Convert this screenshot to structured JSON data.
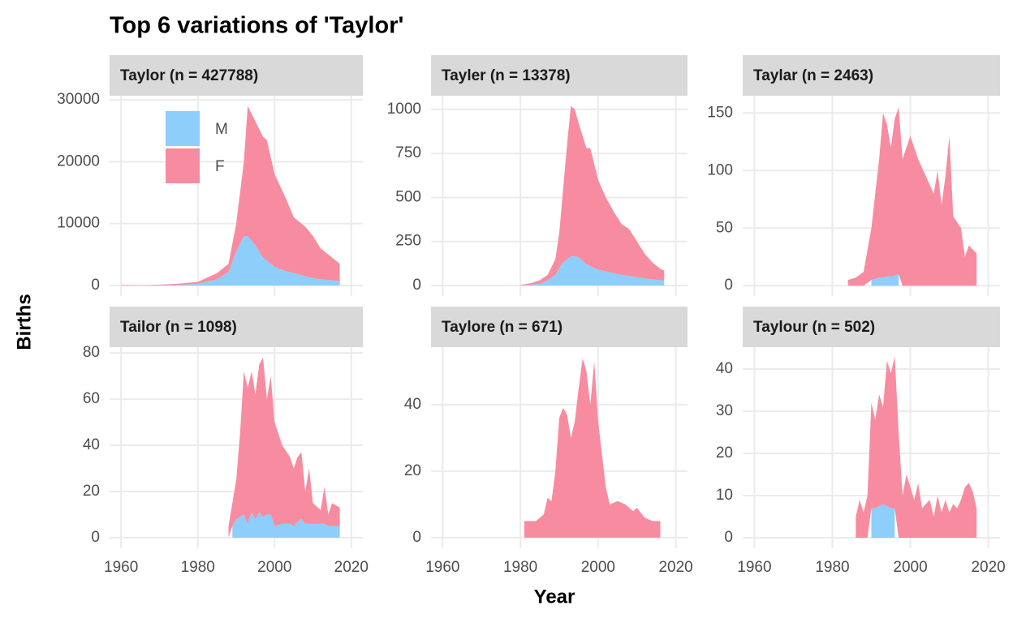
{
  "title": "Top 6 variations of 'Taylor'",
  "x_label": "Year",
  "y_label": "Births",
  "chart_data": [
    {
      "type": "area",
      "stacked": true,
      "grid": true,
      "legend": "top-left",
      "subtitle": "Taylor (n = 427788)",
      "x": [
        1960,
        1965,
        1970,
        1975,
        1980,
        1985,
        1988,
        1990,
        1992,
        1993,
        1995,
        1997,
        1998,
        2000,
        2003,
        2005,
        2008,
        2010,
        2012,
        2014,
        2017
      ],
      "series": [
        {
          "name": "M",
          "color": "#8ecefa",
          "values": [
            20,
            10,
            50,
            100,
            300,
            1000,
            2200,
            5500,
            8000,
            8000,
            6500,
            4500,
            4000,
            3000,
            2300,
            2000,
            1500,
            1200,
            1000,
            900,
            700
          ]
        },
        {
          "name": "F",
          "color": "#f78ca0",
          "values": [
            80,
            40,
            100,
            200,
            300,
            1000,
            1300,
            4500,
            12000,
            21000,
            20000,
            19500,
            19500,
            15000,
            11700,
            9000,
            8000,
            6800,
            5000,
            4100,
            2800
          ]
        }
      ],
      "xlim": [
        1957,
        2023
      ],
      "xticks": [
        1960,
        1980,
        2000,
        2020
      ],
      "ylim": [
        -1700,
        30650
      ],
      "yticks": [
        0,
        10000,
        20000,
        30000
      ]
    },
    {
      "type": "area",
      "stacked": true,
      "grid": true,
      "subtitle": "Tayler (n = 13378)",
      "x": [
        1980,
        1983,
        1985,
        1987,
        1989,
        1990,
        1991,
        1992,
        1993,
        1994,
        1995,
        1997,
        1998,
        2000,
        2002,
        2004,
        2006,
        2008,
        2010,
        2012,
        2014,
        2016,
        2017
      ],
      "series": [
        {
          "color": "#8ecefa",
          "values": [
            1,
            5,
            10,
            30,
            60,
            100,
            130,
            150,
            165,
            165,
            160,
            120,
            110,
            90,
            80,
            70,
            60,
            55,
            45,
            40,
            35,
            30,
            30
          ]
        },
        {
          "color": "#f78ca0",
          "values": [
            2,
            10,
            20,
            30,
            90,
            200,
            420,
            650,
            855,
            835,
            760,
            660,
            670,
            510,
            420,
            350,
            290,
            265,
            205,
            140,
            95,
            65,
            55
          ]
        }
      ],
      "xlim": [
        1957,
        2023
      ],
      "xticks": [
        1960,
        1980,
        2000,
        2020
      ],
      "ylim": [
        -60,
        1078
      ],
      "yticks": [
        0,
        250,
        500,
        750,
        1000
      ]
    },
    {
      "type": "area",
      "stacked": true,
      "grid": true,
      "subtitle": "Taylar (n = 2463)",
      "x": [
        1984,
        1986,
        1988,
        1990,
        1992,
        1993,
        1994,
        1995,
        1996,
        1997,
        1998,
        2000,
        2002,
        2004,
        2006,
        2007,
        2008,
        2009,
        2010,
        2011,
        2012,
        2013,
        2014,
        2015,
        2017
      ],
      "series": [
        {
          "color": "#8ecefa",
          "values": [
            null,
            null,
            null,
            5,
            7,
            7,
            8,
            8,
            9,
            10,
            null,
            null,
            null,
            null,
            null,
            null,
            null,
            null,
            null,
            null,
            null,
            null,
            null,
            null,
            null
          ]
        },
        {
          "color": "#f78ca0",
          "values": [
            5,
            7,
            12,
            45,
            103,
            143,
            132,
            112,
            136,
            145,
            110,
            130,
            110,
            95,
            80,
            100,
            70,
            95,
            130,
            60,
            55,
            50,
            25,
            35,
            28
          ]
        }
      ],
      "xlim": [
        1957,
        2023
      ],
      "xticks": [
        1960,
        1980,
        2000,
        2020
      ],
      "ylim": [
        -9,
        165
      ],
      "yticks": [
        0,
        50,
        100,
        150
      ]
    },
    {
      "type": "area",
      "stacked": true,
      "grid": true,
      "subtitle": "Tailor (n = 1098)",
      "x": [
        1988,
        1989,
        1990,
        1991,
        1992,
        1993,
        1994,
        1995,
        1996,
        1997,
        1998,
        1999,
        2000,
        2002,
        2004,
        2005,
        2006,
        2007,
        2008,
        2009,
        2010,
        2012,
        2013,
        2014,
        2015,
        2017
      ],
      "series": [
        {
          "color": "#8ecefa",
          "values": [
            null,
            5,
            8,
            9,
            10,
            6,
            11,
            8,
            11,
            9,
            10,
            10,
            5,
            6,
            6,
            5,
            7,
            8,
            6,
            6,
            6,
            6,
            6,
            5,
            5,
            5
          ]
        },
        {
          "color": "#f78ca0",
          "values": [
            5,
            10,
            17,
            36,
            62,
            59,
            61,
            54,
            64,
            69,
            50,
            60,
            45,
            34,
            29,
            25,
            28,
            29,
            14,
            24,
            9,
            6,
            16,
            5,
            10,
            8
          ]
        }
      ],
      "xlim": [
        1957,
        2023
      ],
      "xticks": [
        1960,
        1980,
        2000,
        2020
      ],
      "ylim": [
        -4.6,
        82.5
      ],
      "yticks": [
        0,
        20,
        40,
        60,
        80
      ]
    },
    {
      "type": "area",
      "stacked": true,
      "grid": true,
      "subtitle": "Taylore (n = 671)",
      "x": [
        1981,
        1984,
        1986,
        1987,
        1988,
        1989,
        1990,
        1991,
        1992,
        1993,
        1994,
        1995,
        1996,
        1997,
        1998,
        1999,
        2000,
        2002,
        2003,
        2005,
        2007,
        2009,
        2010,
        2012,
        2014,
        2016
      ],
      "series": [
        {
          "color": "#f78ca0",
          "values": [
            5,
            5,
            7,
            12,
            11,
            20,
            36,
            39,
            37,
            30,
            35,
            45,
            54,
            50,
            40,
            53,
            35,
            15,
            10,
            11,
            10,
            8,
            9,
            6,
            5,
            5
          ]
        }
      ],
      "xlim": [
        1957,
        2023
      ],
      "xticks": [
        1960,
        1980,
        2000,
        2020
      ],
      "ylim": [
        -3.2,
        57.3
      ],
      "yticks": [
        0,
        20,
        40
      ]
    },
    {
      "type": "area",
      "stacked": true,
      "grid": true,
      "subtitle": "Taylour (n = 502)",
      "x": [
        1986,
        1987,
        1988,
        1989,
        1990,
        1991,
        1992,
        1993,
        1994,
        1995,
        1996,
        1997,
        1998,
        1999,
        2000,
        2001,
        2002,
        2003,
        2005,
        2006,
        2007,
        2008,
        2009,
        2010,
        2011,
        2012,
        2013,
        2014,
        2015,
        2016,
        2017
      ],
      "series": [
        {
          "color": "#8ecefa",
          "values": [
            null,
            null,
            null,
            null,
            7,
            7,
            7.5,
            8,
            7.5,
            7,
            7,
            null,
            null,
            null,
            null,
            null,
            null,
            null,
            null,
            null,
            null,
            null,
            null,
            null,
            null,
            null,
            null,
            null,
            null,
            null,
            null
          ]
        },
        {
          "color": "#f78ca0",
          "values": [
            5,
            9,
            6,
            10,
            25,
            21,
            26.5,
            23,
            34.5,
            32,
            36,
            25,
            10,
            15,
            12,
            9,
            13,
            7,
            9,
            5,
            10,
            6,
            9,
            6,
            8,
            7,
            9,
            12,
            13,
            11,
            7
          ]
        }
      ],
      "xlim": [
        1957,
        2023
      ],
      "xticks": [
        1960,
        1980,
        2000,
        2020
      ],
      "ylim": [
        -2.5,
        45.2
      ],
      "yticks": [
        0,
        10,
        20,
        30,
        40
      ]
    }
  ]
}
